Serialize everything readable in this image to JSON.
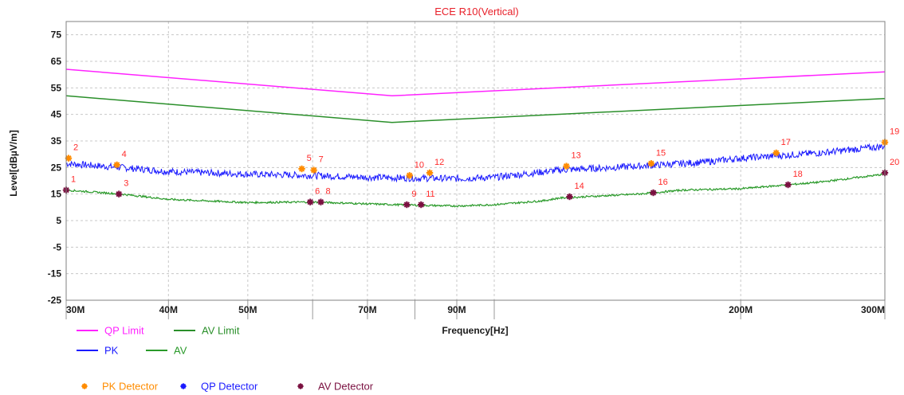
{
  "chart_data": {
    "type": "line",
    "title": "ECE R10(Vertical)",
    "xlabel": "Frequency[Hz]",
    "ylabel": "Level[dBµV/m]",
    "x_scale": "log",
    "xlim": [
      30,
      300
    ],
    "ylim": [
      -25,
      80
    ],
    "y_ticks": [
      75,
      65,
      55,
      45,
      35,
      25,
      15,
      5,
      -5,
      -15,
      -25
    ],
    "x_tick_labels": [
      {
        "value": 30,
        "label": "30M"
      },
      {
        "value": 40,
        "label": "40M"
      },
      {
        "value": 50,
        "label": "50M"
      },
      {
        "value": 70,
        "label": "70M"
      },
      {
        "value": 90,
        "label": "90M"
      },
      {
        "value": 200,
        "label": "200M"
      },
      {
        "value": 300,
        "label": "300M"
      }
    ],
    "x_grid_lines": [
      30,
      40,
      50,
      60,
      70,
      80,
      90,
      100,
      200,
      300
    ],
    "grid": true,
    "series": [
      {
        "name": "QP Limit",
        "color": "#ff22ff",
        "style": "line",
        "x": [
          30,
          75,
          300
        ],
        "y": [
          62,
          52,
          61
        ]
      },
      {
        "name": "AV Limit",
        "color": "#2a8f2a",
        "style": "line",
        "x": [
          30,
          75,
          300
        ],
        "y": [
          52,
          42,
          51
        ]
      },
      {
        "name": "PK",
        "color": "#1a1aff",
        "style": "noisy",
        "x": [
          30,
          35,
          40,
          50,
          60,
          70,
          80,
          90,
          100,
          120,
          150,
          180,
          200,
          250,
          300
        ],
        "y": [
          26.5,
          25,
          23.5,
          22.5,
          22,
          21.3,
          21,
          20.8,
          21.3,
          24,
          25.5,
          27,
          28.5,
          30.5,
          33
        ]
      },
      {
        "name": "AV",
        "color": "#2a9a2a",
        "style": "noisy",
        "x": [
          30,
          35,
          40,
          50,
          60,
          70,
          80,
          90,
          100,
          115,
          120,
          150,
          170,
          200,
          250,
          300
        ],
        "y": [
          16.5,
          15,
          13,
          11.8,
          12,
          11.3,
          10.8,
          10.5,
          11,
          12.5,
          13.5,
          15,
          16.5,
          17,
          19.5,
          22.5
        ]
      }
    ],
    "detectors": {
      "pk": {
        "name": "PK Detector",
        "color": "#ff8c00",
        "points": [
          {
            "label": "2",
            "x": 30.2,
            "y": 28.5
          },
          {
            "label": "4",
            "x": 34.6,
            "y": 26
          },
          {
            "label": "5",
            "x": 58.2,
            "y": 24.5
          },
          {
            "label": "7",
            "x": 60.2,
            "y": 24
          },
          {
            "label": "10",
            "x": 78.8,
            "y": 22
          },
          {
            "label": "12",
            "x": 83.4,
            "y": 23
          },
          {
            "label": "13",
            "x": 122.5,
            "y": 25.5
          },
          {
            "label": "15",
            "x": 155.5,
            "y": 26.5
          },
          {
            "label": "17",
            "x": 221,
            "y": 30.5
          },
          {
            "label": "19",
            "x": 300,
            "y": 34.5
          }
        ]
      },
      "qp": {
        "name": "QP Detector",
        "color": "#1a1aff",
        "points": []
      },
      "av": {
        "name": "AV Detector",
        "color": "#7a1040",
        "points": [
          {
            "label": "1",
            "x": 30,
            "y": 16.5
          },
          {
            "label": "3",
            "x": 34.8,
            "y": 15
          },
          {
            "label": "6",
            "x": 59.6,
            "y": 12
          },
          {
            "label": "8",
            "x": 61.4,
            "y": 12
          },
          {
            "label": "9",
            "x": 78.2,
            "y": 11
          },
          {
            "label": "11",
            "x": 81.4,
            "y": 11
          },
          {
            "label": "14",
            "x": 123.6,
            "y": 14
          },
          {
            "label": "16",
            "x": 156.4,
            "y": 15.5
          },
          {
            "label": "18",
            "x": 228.5,
            "y": 18.5
          },
          {
            "label": "20",
            "x": 300,
            "y": 23
          }
        ]
      }
    },
    "legend": {
      "placement": "bottom",
      "lines": [
        {
          "label": "QP Limit",
          "color": "#ff22ff"
        },
        {
          "label": "AV Limit",
          "color": "#2a8f2a"
        },
        {
          "label": "PK",
          "color": "#1a1aff"
        },
        {
          "label": "AV",
          "color": "#2a9a2a"
        }
      ],
      "markers": [
        {
          "label": "PK Detector",
          "color": "#ff8c00"
        },
        {
          "label": "QP Detector",
          "color": "#1a1aff"
        },
        {
          "label": "AV Detector",
          "color": "#7a1040"
        }
      ]
    }
  }
}
